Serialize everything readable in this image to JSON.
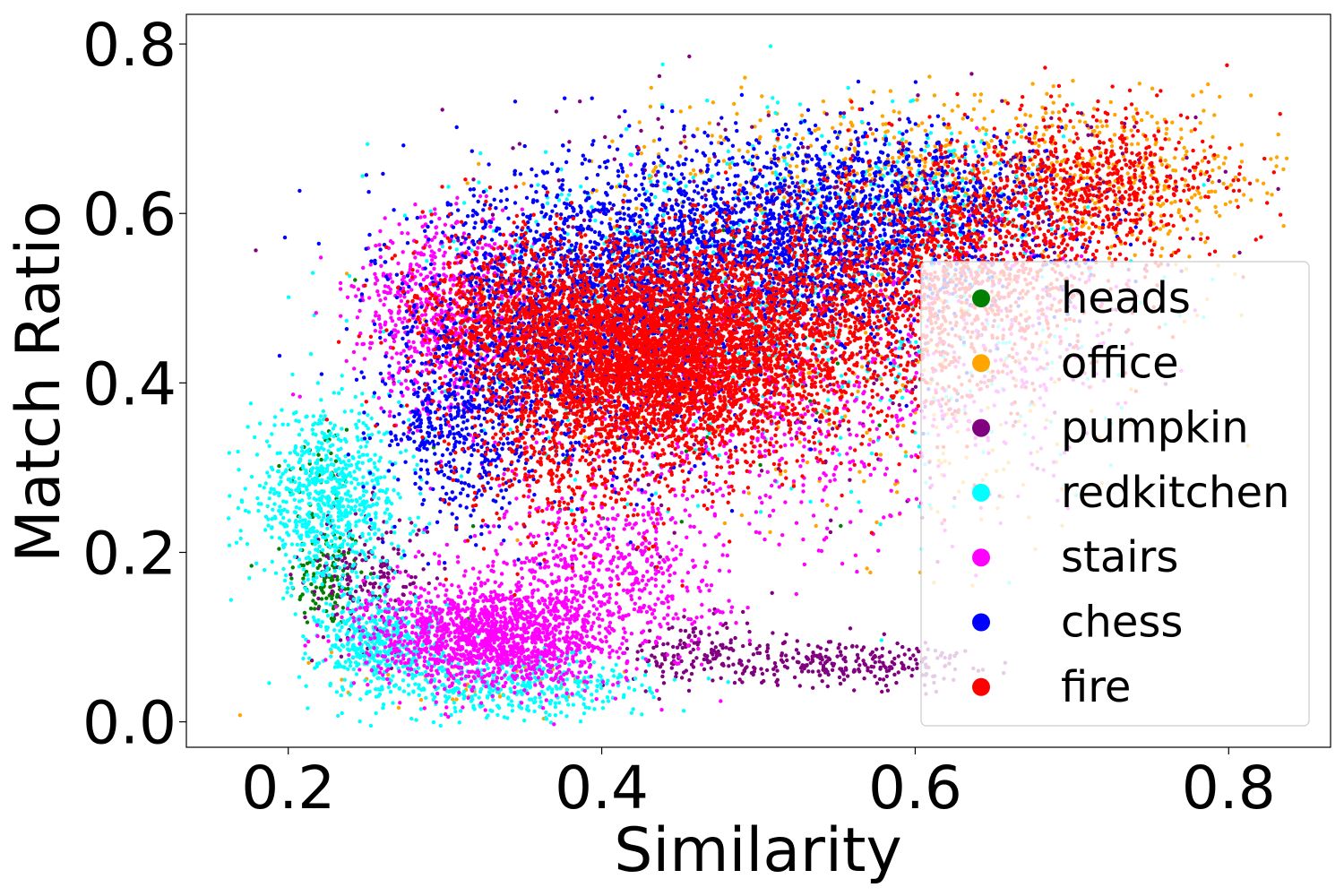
{
  "chart_data": {
    "type": "scatter",
    "title": "",
    "xlabel": "Similarity",
    "ylabel": "Match Ratio",
    "xlim": [
      0.135,
      0.865
    ],
    "ylim": [
      -0.03,
      0.835
    ],
    "xticks": [
      0.2,
      0.4,
      0.6,
      0.8
    ],
    "yticks": [
      0.0,
      0.2,
      0.4,
      0.6,
      0.8
    ],
    "xtick_labels": [
      "0.2",
      "0.4",
      "0.6",
      "0.8"
    ],
    "ytick_labels": [
      "0.0",
      "0.2",
      "0.4",
      "0.6",
      "0.8"
    ],
    "grid": false,
    "legend_position": "lower-right",
    "series": [
      {
        "name": "heads",
        "color": "#008000",
        "clusters": [
          {
            "x": 0.225,
            "y": 0.17,
            "sx": 0.012,
            "sy": 0.03,
            "n": 120
          },
          {
            "x": 0.22,
            "y": 0.29,
            "sx": 0.012,
            "sy": 0.04,
            "n": 40
          },
          {
            "x": 0.44,
            "y": 0.4,
            "sx": 0.08,
            "sy": 0.12,
            "n": 60
          }
        ]
      },
      {
        "name": "office",
        "color": "#FFA500",
        "clusters": [
          {
            "x": 0.62,
            "y": 0.66,
            "sx": 0.09,
            "sy": 0.04,
            "n": 450
          },
          {
            "x": 0.74,
            "y": 0.63,
            "sx": 0.05,
            "sy": 0.05,
            "n": 220
          },
          {
            "x": 0.55,
            "y": 0.5,
            "sx": 0.1,
            "sy": 0.12,
            "n": 300
          },
          {
            "x": 0.62,
            "y": 0.3,
            "sx": 0.06,
            "sy": 0.06,
            "n": 60
          },
          {
            "x": 0.33,
            "y": 0.05,
            "sx": 0.05,
            "sy": 0.02,
            "n": 40
          }
        ]
      },
      {
        "name": "pumpkin",
        "color": "#800080",
        "clusters": [
          {
            "x": 0.25,
            "y": 0.17,
            "sx": 0.02,
            "sy": 0.04,
            "n": 200
          },
          {
            "x": 0.46,
            "y": 0.08,
            "sx": 0.02,
            "sy": 0.02,
            "n": 140
          },
          {
            "x": 0.555,
            "y": 0.07,
            "sx": 0.04,
            "sy": 0.014,
            "n": 260
          },
          {
            "x": 0.5,
            "y": 0.5,
            "sx": 0.1,
            "sy": 0.12,
            "n": 500
          },
          {
            "x": 0.68,
            "y": 0.62,
            "sx": 0.05,
            "sy": 0.05,
            "n": 120
          }
        ]
      },
      {
        "name": "redkitchen",
        "color": "#00FFFF",
        "clusters": [
          {
            "x": 0.225,
            "y": 0.26,
            "sx": 0.025,
            "sy": 0.05,
            "n": 800
          },
          {
            "x": 0.26,
            "y": 0.09,
            "sx": 0.02,
            "sy": 0.03,
            "n": 500
          },
          {
            "x": 0.35,
            "y": 0.04,
            "sx": 0.04,
            "sy": 0.02,
            "n": 400
          },
          {
            "x": 0.45,
            "y": 0.5,
            "sx": 0.08,
            "sy": 0.09,
            "n": 600
          },
          {
            "x": 0.6,
            "y": 0.62,
            "sx": 0.05,
            "sy": 0.05,
            "n": 250
          },
          {
            "x": 0.62,
            "y": 0.45,
            "sx": 0.06,
            "sy": 0.1,
            "n": 150
          }
        ]
      },
      {
        "name": "stairs",
        "color": "#FF00FF",
        "clusters": [
          {
            "x": 0.33,
            "y": 0.1,
            "sx": 0.04,
            "sy": 0.03,
            "n": 1500
          },
          {
            "x": 0.4,
            "y": 0.18,
            "sx": 0.04,
            "sy": 0.05,
            "n": 600
          },
          {
            "x": 0.3,
            "y": 0.48,
            "sx": 0.03,
            "sy": 0.06,
            "n": 700
          },
          {
            "x": 0.5,
            "y": 0.35,
            "sx": 0.07,
            "sy": 0.08,
            "n": 500
          },
          {
            "x": 0.64,
            "y": 0.45,
            "sx": 0.05,
            "sy": 0.08,
            "n": 300
          }
        ]
      },
      {
        "name": "chess",
        "color": "#0000FF",
        "clusters": [
          {
            "x": 0.5,
            "y": 0.56,
            "sx": 0.08,
            "sy": 0.06,
            "n": 2200
          },
          {
            "x": 0.38,
            "y": 0.46,
            "sx": 0.05,
            "sy": 0.08,
            "n": 1600
          },
          {
            "x": 0.31,
            "y": 0.35,
            "sx": 0.025,
            "sy": 0.06,
            "n": 500
          },
          {
            "x": 0.6,
            "y": 0.62,
            "sx": 0.05,
            "sy": 0.04,
            "n": 500
          }
        ]
      },
      {
        "name": "fire",
        "color": "#FF0000",
        "clusters": [
          {
            "x": 0.43,
            "y": 0.43,
            "sx": 0.05,
            "sy": 0.06,
            "n": 4000
          },
          {
            "x": 0.52,
            "y": 0.47,
            "sx": 0.07,
            "sy": 0.07,
            "n": 1800
          },
          {
            "x": 0.64,
            "y": 0.56,
            "sx": 0.05,
            "sy": 0.06,
            "n": 900
          },
          {
            "x": 0.72,
            "y": 0.64,
            "sx": 0.04,
            "sy": 0.04,
            "n": 500
          },
          {
            "x": 0.34,
            "y": 0.48,
            "sx": 0.03,
            "sy": 0.05,
            "n": 700
          },
          {
            "x": 0.38,
            "y": 0.3,
            "sx": 0.04,
            "sy": 0.05,
            "n": 300
          }
        ]
      }
    ]
  },
  "legend": {
    "items": [
      "heads",
      "office",
      "pumpkin",
      "redkitchen",
      "stairs",
      "chess",
      "fire"
    ]
  }
}
